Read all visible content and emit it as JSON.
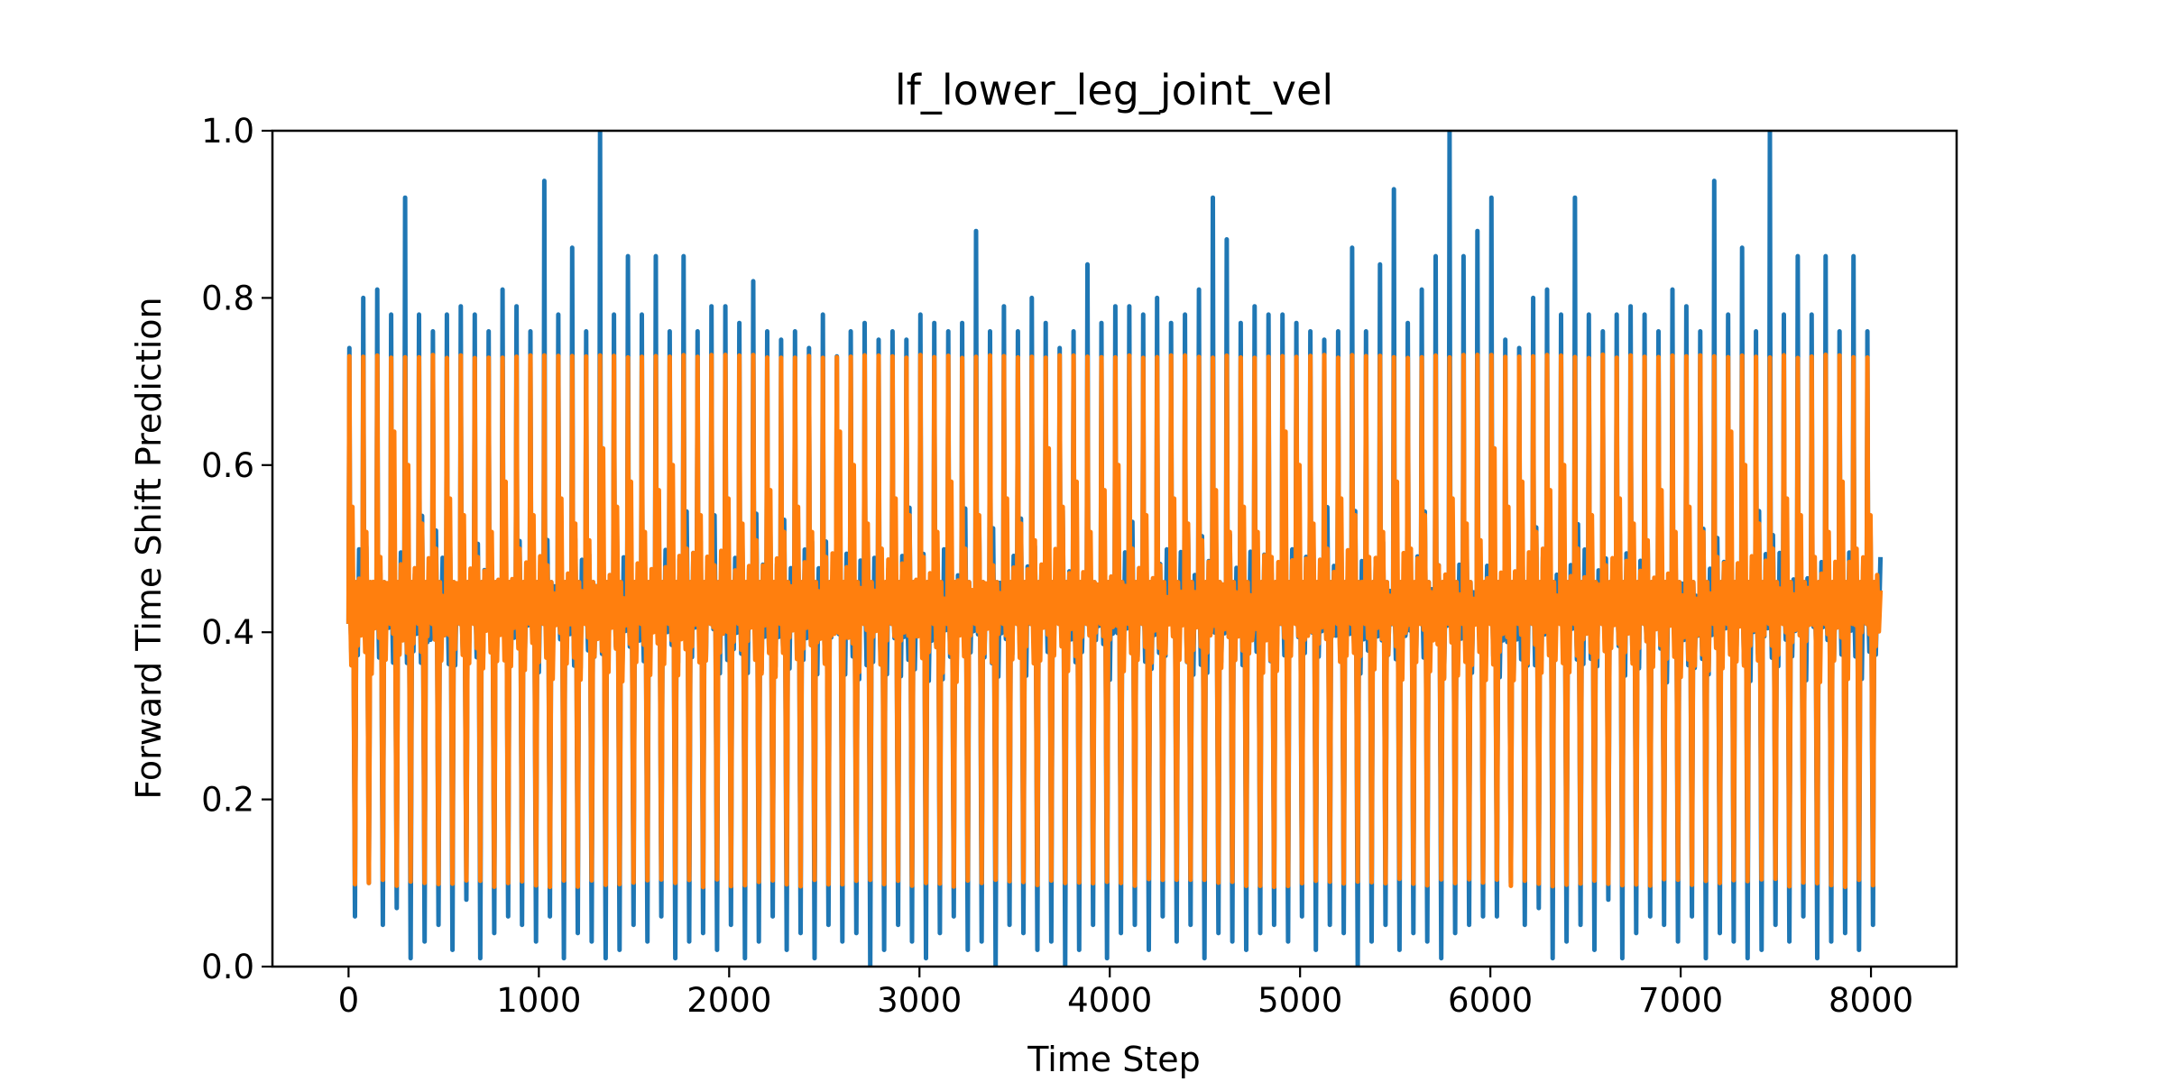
{
  "chart_data": {
    "type": "line",
    "title": "lf_lower_leg_joint_vel",
    "xlabel": "Time Step",
    "ylabel": "Forward Time Shift Prediction",
    "xlim": [
      -400,
      8450
    ],
    "ylim": [
      0.0,
      1.0
    ],
    "x_ticks": [
      "0",
      "1000",
      "2000",
      "3000",
      "4000",
      "5000",
      "6000",
      "7000",
      "8000"
    ],
    "y_ticks": [
      "0.0",
      "0.2",
      "0.4",
      "0.6",
      "0.8",
      "1.0"
    ],
    "grid": false,
    "legend": "none",
    "x_range": [
      0,
      8050
    ],
    "series": [
      {
        "color": "#1f77b4",
        "cycles": 110,
        "baseline": 0.41,
        "peaks": [
          0.74,
          0.8,
          0.81,
          0.78,
          0.92,
          0.78,
          0.76,
          0.78,
          0.79,
          0.78,
          0.76,
          0.81,
          0.79,
          0.76,
          0.94,
          0.78,
          0.86,
          0.76,
          1.0,
          0.78,
          0.85,
          0.78,
          0.85,
          0.76,
          0.85,
          0.76,
          0.79,
          0.79,
          0.77,
          0.82,
          0.76,
          0.75,
          0.76,
          0.74,
          0.78,
          0.73,
          0.76,
          0.77,
          0.75,
          0.76,
          0.75,
          0.78,
          0.77,
          0.76,
          0.77,
          0.88,
          0.76,
          0.79,
          0.76,
          0.8,
          0.77,
          0.74,
          0.76,
          0.84,
          0.77,
          0.79,
          0.79,
          0.78,
          0.8,
          0.77,
          0.78,
          0.81,
          0.92,
          0.87,
          0.77,
          0.79,
          0.78,
          0.78,
          0.77,
          0.76,
          0.75,
          0.76,
          0.86,
          0.76,
          0.84,
          0.93,
          0.77,
          0.81,
          0.85,
          1.0,
          0.85,
          0.88,
          0.92,
          0.75
        ],
        "troughs": [
          0.06,
          0.1,
          0.05,
          0.07,
          0.01,
          0.03,
          0.05,
          0.02,
          0.08,
          0.01,
          0.04,
          0.06,
          0.05,
          0.03,
          0.06,
          0.01,
          0.04,
          0.03,
          0.01,
          0.02,
          0.05,
          0.03,
          0.06,
          0.01,
          0.03,
          0.04,
          0.02,
          0.05,
          0.01,
          0.03,
          0.06,
          0.02,
          0.04,
          0.01,
          0.05,
          0.03,
          0.04,
          0.0,
          0.02,
          0.05,
          0.03,
          0.01,
          0.04,
          0.06,
          0.02,
          0.03,
          0.0,
          0.05,
          0.04,
          0.02,
          0.03,
          0.0,
          0.02,
          0.05,
          0.01,
          0.04,
          0.05,
          0.02,
          0.06,
          0.03,
          0.05,
          0.01,
          0.04,
          0.03,
          0.02,
          0.04,
          0.05,
          0.03,
          0.06,
          0.02,
          0.05,
          0.04,
          0.0,
          0.03,
          0.05,
          0.02,
          0.04,
          0.03,
          0.01,
          0.04,
          0.05,
          0.06
        ]
      },
      {
        "color": "#ff7f0e",
        "cycles": 110,
        "baseline": 0.41,
        "peak_level": 0.73,
        "trough_level": 0.1,
        "secondary_peaks": [
          0.55,
          0.52,
          0.49,
          0.64,
          0.6,
          0.53,
          0.5,
          0.56,
          0.54,
          0.49,
          0.52,
          0.58,
          0.5,
          0.54,
          0.48,
          0.56,
          0.53,
          0.51,
          0.62,
          0.55,
          0.58,
          0.52,
          0.57,
          0.6,
          0.5,
          0.54,
          0.48,
          0.56,
          0.53,
          0.51,
          0.57,
          0.52
        ]
      }
    ]
  }
}
